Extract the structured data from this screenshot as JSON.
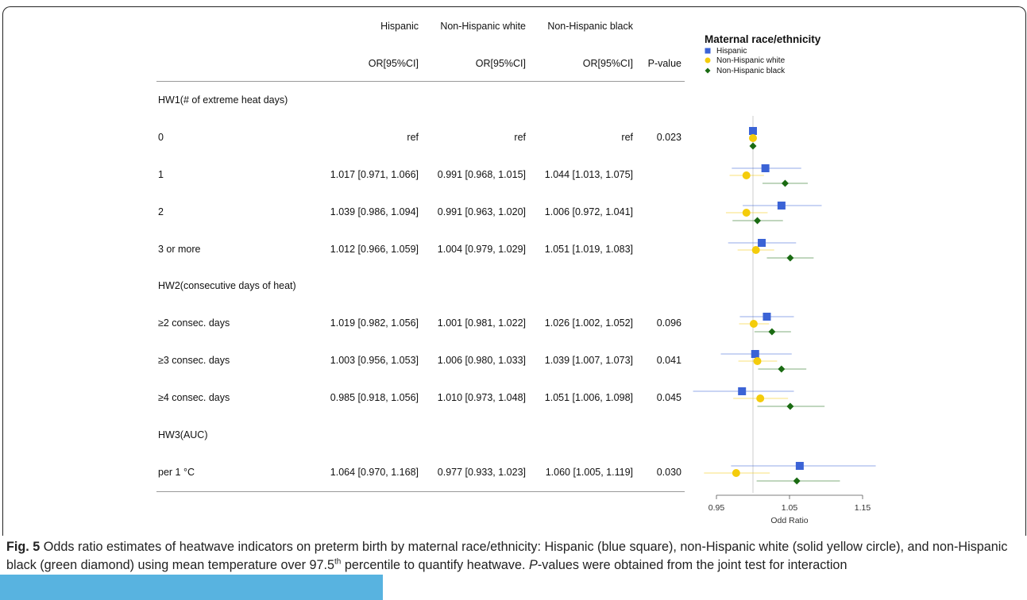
{
  "table": {
    "group_headers": [
      "Hispanic",
      "Non-Hispanic white",
      "Non-Hispanic black"
    ],
    "col_headers": [
      "OR[95%CI]",
      "OR[95%CI]",
      "OR[95%CI]",
      "P-value"
    ],
    "rows": [
      {
        "label": "HW1(# of extreme heat days)",
        "section": true
      },
      {
        "label": "0",
        "h": "ref",
        "w": "ref",
        "b": "ref",
        "p": "0.023"
      },
      {
        "label": "1",
        "h": "1.017 [0.971, 1.066]",
        "w": "0.991 [0.968, 1.015]",
        "b": "1.044 [1.013, 1.075]",
        "p": ""
      },
      {
        "label": "2",
        "h": "1.039 [0.986, 1.094]",
        "w": "0.991 [0.963, 1.020]",
        "b": "1.006 [0.972, 1.041]",
        "p": ""
      },
      {
        "label": "3 or more",
        "h": "1.012 [0.966, 1.059]",
        "w": "1.004 [0.979, 1.029]",
        "b": "1.051 [1.019, 1.083]",
        "p": ""
      },
      {
        "label": "HW2(consecutive days of heat)",
        "section": true
      },
      {
        "label": "≥2 consec. days",
        "h": "1.019 [0.982, 1.056]",
        "w": "1.001 [0.981, 1.022]",
        "b": "1.026 [1.002, 1.052]",
        "p": "0.096"
      },
      {
        "label": "≥3 consec. days",
        "h": "1.003 [0.956, 1.053]",
        "w": "1.006 [0.980, 1.033]",
        "b": "1.039 [1.007, 1.073]",
        "p": "0.041"
      },
      {
        "label": "≥4 consec. days",
        "h": "0.985 [0.918, 1.056]",
        "w": "1.010 [0.973, 1.048]",
        "b": "1.051 [1.006, 1.098]",
        "p": "0.045"
      },
      {
        "label": "HW3(AUC)",
        "section": true
      },
      {
        "label": "per 1 °C",
        "h": "1.064 [0.970, 1.168]",
        "w": "0.977 [0.933, 1.023]",
        "b": "1.060 [1.005, 1.119]",
        "p": "0.030"
      }
    ]
  },
  "chart_data": {
    "type": "scatter",
    "xlabel": "Odd Ratio",
    "xlim": [
      0.9,
      1.17
    ],
    "xticks": [
      0.95,
      1.05,
      1.15
    ],
    "reference_line": 1.0,
    "legend": {
      "title": "Maternal race/ethnicity",
      "placement": "top-right"
    },
    "series": [
      {
        "name": "Hispanic",
        "marker": "square",
        "color": "#3b63d6",
        "points": [
          [
            1.0,
            null,
            null
          ],
          [
            1.017,
            0.971,
            1.066
          ],
          [
            1.039,
            0.986,
            1.094
          ],
          [
            1.012,
            0.966,
            1.059
          ],
          [
            1.019,
            0.982,
            1.056
          ],
          [
            1.003,
            0.956,
            1.053
          ],
          [
            0.985,
            0.918,
            1.056
          ],
          [
            1.064,
            0.97,
            1.168
          ]
        ]
      },
      {
        "name": "Non-Hispanic white",
        "marker": "circle",
        "color": "#f4cc0b",
        "points": [
          [
            1.0,
            null,
            null
          ],
          [
            0.991,
            0.968,
            1.015
          ],
          [
            0.991,
            0.963,
            1.02
          ],
          [
            1.004,
            0.979,
            1.029
          ],
          [
            1.001,
            0.981,
            1.022
          ],
          [
            1.006,
            0.98,
            1.033
          ],
          [
            1.01,
            0.973,
            1.048
          ],
          [
            0.977,
            0.933,
            1.023
          ]
        ]
      },
      {
        "name": "Non-Hispanic black",
        "marker": "diamond",
        "color": "#1a6b12",
        "points": [
          [
            1.0,
            null,
            null
          ],
          [
            1.044,
            1.013,
            1.075
          ],
          [
            1.006,
            0.972,
            1.041
          ],
          [
            1.051,
            1.019,
            1.083
          ],
          [
            1.026,
            1.002,
            1.052
          ],
          [
            1.039,
            1.007,
            1.073
          ],
          [
            1.051,
            1.006,
            1.098
          ],
          [
            1.06,
            1.005,
            1.119
          ]
        ]
      }
    ]
  },
  "caption": {
    "label": "Fig. 5",
    "text_1": " Odds ratio estimates of heatwave indicators on preterm birth by maternal race/ethnicity: Hispanic (blue square), non-Hispanic white (solid yellow circle), and non-Hispanic black (green diamond) using mean temperature over 97.5",
    "sup": "th",
    "text_2": " percentile to quantify heatwave. ",
    "italic": "P",
    "text_3": "-values were obtained from the joint test for interaction"
  }
}
